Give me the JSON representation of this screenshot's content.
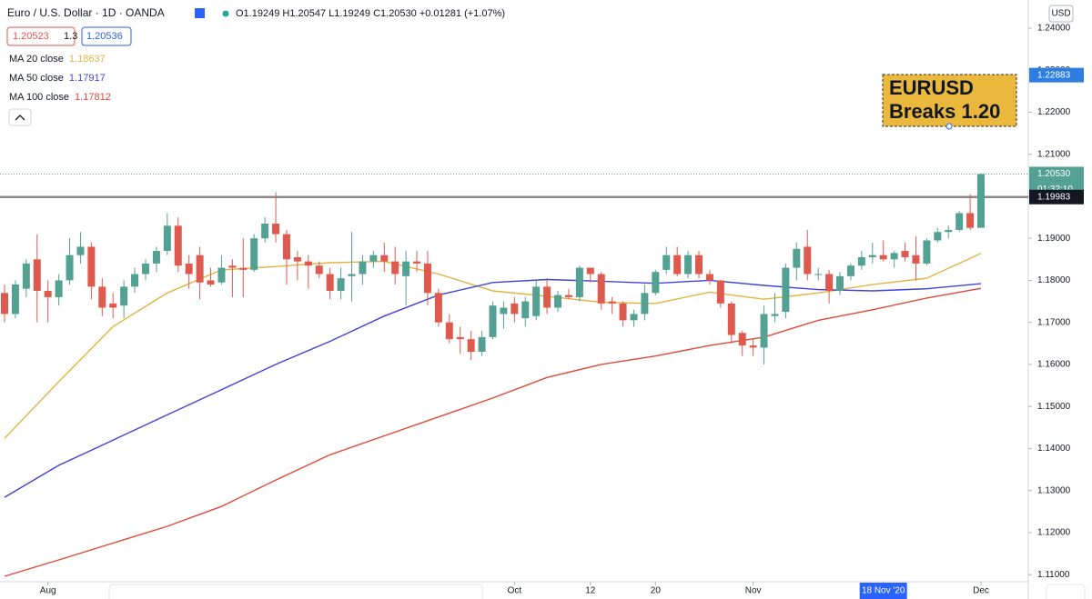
{
  "chart_data": {
    "type": "candlestick",
    "title": "Euro / U.S. Dollar · 1D · OANDA",
    "ohlc_readout": "O1.19249 H1.20547 L1.19249 C1.20530 +0.01281 (+1.07%)",
    "sell_price": "1.20523",
    "spread": "1.3",
    "buy_price": "1.20536",
    "currency": "USD",
    "up_color": "#53a192",
    "down_color": "#df5a4e",
    "open": [
      1.177,
      1.172,
      1.178,
      1.185,
      1.1775,
      1.176,
      1.18,
      1.186,
      1.188,
      1.1785,
      1.1745,
      1.174,
      1.1785,
      1.1815,
      1.184,
      1.187,
      1.193,
      1.184,
      1.186,
      1.18,
      1.1795,
      1.1835,
      1.183,
      1.1825,
      1.19,
      1.1935,
      1.191,
      1.1855,
      1.1845,
      1.1835,
      1.1815,
      1.1775,
      1.181,
      1.1815,
      1.1845,
      1.186,
      1.1845,
      1.181,
      1.1845,
      1.184,
      1.177,
      1.17,
      1.1665,
      1.166,
      1.163,
      1.1665,
      1.172,
      1.1745,
      1.171,
      1.1715,
      1.1785,
      1.1735,
      1.1765,
      1.176,
      1.183,
      1.1815,
      1.175,
      1.1745,
      1.1705,
      1.172,
      1.177,
      1.1825,
      1.186,
      1.1815,
      1.186,
      1.1815,
      1.18,
      1.1745,
      1.1675,
      1.1645,
      1.164,
      1.1715,
      1.1725,
      1.183,
      1.188,
      1.1815,
      1.1815,
      1.1775,
      1.181,
      1.1835,
      1.1855,
      1.186,
      1.185,
      1.187,
      1.186,
      1.184,
      1.1895,
      1.1915,
      1.192,
      1.196,
      1.1925
    ],
    "high": [
      1.179,
      1.18,
      1.185,
      1.191,
      1.18,
      1.1815,
      1.19,
      1.1915,
      1.189,
      1.1805,
      1.177,
      1.18,
      1.183,
      1.185,
      1.188,
      1.196,
      1.195,
      1.186,
      1.188,
      1.183,
      1.186,
      1.185,
      1.19,
      1.191,
      1.195,
      1.201,
      1.192,
      1.187,
      1.186,
      1.1845,
      1.183,
      1.183,
      1.1915,
      1.186,
      1.187,
      1.189,
      1.188,
      1.187,
      1.187,
      1.187,
      1.178,
      1.172,
      1.169,
      1.168,
      1.168,
      1.175,
      1.175,
      1.176,
      1.176,
      1.18,
      1.1805,
      1.1775,
      1.178,
      1.1835,
      1.183,
      1.182,
      1.176,
      1.175,
      1.173,
      1.179,
      1.1825,
      1.188,
      1.188,
      1.187,
      1.187,
      1.1825,
      1.18,
      1.175,
      1.168,
      1.166,
      1.174,
      1.177,
      1.184,
      1.189,
      1.192,
      1.183,
      1.1825,
      1.182,
      1.184,
      1.187,
      1.189,
      1.1895,
      1.187,
      1.189,
      1.1905,
      1.19,
      1.1925,
      1.193,
      1.1965,
      1.2005,
      1.2055
    ],
    "low": [
      1.17,
      1.171,
      1.176,
      1.17,
      1.17,
      1.174,
      1.179,
      1.184,
      1.1755,
      1.1715,
      1.171,
      1.171,
      1.177,
      1.18,
      1.182,
      1.186,
      1.182,
      1.178,
      1.1755,
      1.1785,
      1.179,
      1.176,
      1.176,
      1.182,
      1.189,
      1.189,
      1.179,
      1.18,
      1.178,
      1.1805,
      1.1755,
      1.1755,
      1.175,
      1.179,
      1.183,
      1.182,
      1.179,
      1.174,
      1.182,
      1.174,
      1.169,
      1.165,
      1.1625,
      1.161,
      1.162,
      1.166,
      1.1685,
      1.17,
      1.169,
      1.1705,
      1.172,
      1.1725,
      1.1755,
      1.175,
      1.1795,
      1.173,
      1.172,
      1.169,
      1.169,
      1.1705,
      1.1765,
      1.1815,
      1.181,
      1.1805,
      1.1805,
      1.179,
      1.1735,
      1.165,
      1.162,
      1.162,
      1.16,
      1.17,
      1.171,
      1.18,
      1.18,
      1.18,
      1.1745,
      1.1765,
      1.18,
      1.1825,
      1.184,
      1.1845,
      1.183,
      1.1845,
      1.18,
      1.1835,
      1.189,
      1.19,
      1.1915,
      1.192,
      1.1925
    ],
    "close": [
      1.172,
      1.179,
      1.184,
      1.1775,
      1.176,
      1.18,
      1.186,
      1.188,
      1.1785,
      1.1735,
      1.1735,
      1.1785,
      1.1815,
      1.184,
      1.187,
      1.193,
      1.1835,
      1.1815,
      1.1795,
      1.179,
      1.183,
      1.183,
      1.1825,
      1.19,
      1.1935,
      1.191,
      1.185,
      1.1845,
      1.1835,
      1.1815,
      1.1775,
      1.1805,
      1.1815,
      1.1845,
      1.186,
      1.1845,
      1.1815,
      1.1845,
      1.184,
      1.177,
      1.17,
      1.166,
      1.166,
      1.163,
      1.1665,
      1.174,
      1.1735,
      1.172,
      1.175,
      1.1785,
      1.1735,
      1.1765,
      1.176,
      1.183,
      1.1815,
      1.1745,
      1.1745,
      1.1705,
      1.172,
      1.177,
      1.182,
      1.186,
      1.1815,
      1.186,
      1.1815,
      1.18,
      1.1745,
      1.167,
      1.1645,
      1.164,
      1.172,
      1.172,
      1.183,
      1.1875,
      1.1815,
      1.1815,
      1.1775,
      1.181,
      1.1835,
      1.1855,
      1.186,
      1.185,
      1.1865,
      1.1855,
      1.184,
      1.1895,
      1.1915,
      1.192,
      1.196,
      1.1925,
      1.2053
    ],
    "x_labels": [
      {
        "index": 4,
        "label": "Aug"
      },
      {
        "index": 47,
        "label": "Oct"
      },
      {
        "index": 54,
        "label": "12"
      },
      {
        "index": 60,
        "label": "20"
      },
      {
        "index": 69,
        "label": "Nov"
      },
      {
        "index": 81,
        "label": "18 Nov '20"
      },
      {
        "index": 90,
        "label": "Dec"
      }
    ],
    "ma_x": [
      0,
      5,
      10,
      15,
      20,
      25,
      30,
      35,
      40,
      45,
      50,
      55,
      60,
      65,
      70,
      75,
      80,
      85,
      90
    ],
    "series": [
      {
        "name": "MA 20 close",
        "color": "#e3b341",
        "last": 1.18637,
        "values": [
          1.1424,
          1.1559,
          1.169,
          1.177,
          1.1825,
          1.1833,
          1.1842,
          1.1845,
          1.1815,
          1.1775,
          1.1762,
          1.1748,
          1.1745,
          1.1772,
          1.1755,
          1.177,
          1.179,
          1.1805,
          1.1864
        ]
      },
      {
        "name": "MA 50 close",
        "color": "#3f43d8",
        "last": 1.17917,
        "values": [
          1.1284,
          1.136,
          1.142,
          1.148,
          1.154,
          1.16,
          1.1655,
          1.1715,
          1.1765,
          1.1795,
          1.1802,
          1.1798,
          1.1793,
          1.18,
          1.1788,
          1.1778,
          1.1775,
          1.178,
          1.1792
        ]
      },
      {
        "name": "MA 100 close",
        "color": "#e0493a",
        "last": 1.17812,
        "values": [
          1.1096,
          1.1135,
          1.1175,
          1.1215,
          1.1262,
          1.1325,
          1.1385,
          1.143,
          1.1475,
          1.152,
          1.1569,
          1.16,
          1.162,
          1.1645,
          1.1665,
          1.1705,
          1.173,
          1.1758,
          1.1781
        ]
      }
    ],
    "ylim": [
      1.1083,
      1.2467
    ],
    "yticks": [
      {
        "value": 1.11,
        "label": "1.11000"
      },
      {
        "value": 1.12,
        "label": "1.12000"
      },
      {
        "value": 1.13,
        "label": "1.13000"
      },
      {
        "value": 1.14,
        "label": "1.14000"
      },
      {
        "value": 1.15,
        "label": "1.15000"
      },
      {
        "value": 1.16,
        "label": "1.16000"
      },
      {
        "value": 1.17,
        "label": "1.17000"
      },
      {
        "value": 1.18,
        "label": "1.18000"
      },
      {
        "value": 1.19,
        "label": "1.19000"
      },
      {
        "value": 1.2,
        "label": "1.20000"
      },
      {
        "value": 1.21,
        "label": "1.21000"
      },
      {
        "value": 1.22,
        "label": "1.22000"
      },
      {
        "value": 1.23,
        "label": "1.23000"
      },
      {
        "value": 1.24,
        "label": "1.24000"
      }
    ],
    "horizontal_line": {
      "value": 1.19983,
      "label": "1.19983",
      "color": "#8a8a8a"
    },
    "last_price": {
      "value": 1.2053,
      "label": "1.20530",
      "countdown": "01:32:10"
    },
    "alert_level": {
      "value": 1.22883,
      "label": "1.22883",
      "color": "#2e7de1"
    },
    "annotation": {
      "lines": [
        "EURUSD",
        "Breaks 1.20"
      ]
    },
    "grid": false
  }
}
